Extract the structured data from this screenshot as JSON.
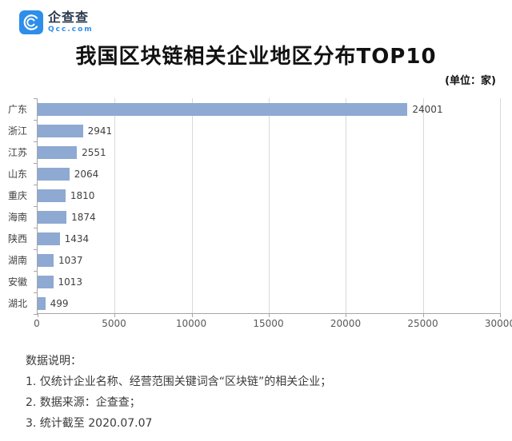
{
  "brand": {
    "name": "企查查",
    "domain": "Qcc.com",
    "brand_blue": "#2e8ee9"
  },
  "header": {
    "title": "我国区块链相关企业地区分布TOP10",
    "unit_label": "(单位：家)"
  },
  "chart_data": {
    "type": "bar",
    "orientation": "horizontal",
    "title": "我国区块链相关企业地区分布TOP10",
    "unit": "家",
    "categories": [
      "广东",
      "浙江",
      "江苏",
      "山东",
      "重庆",
      "海南",
      "陕西",
      "湖南",
      "安徽",
      "湖北"
    ],
    "values": [
      24001,
      2941,
      2551,
      2064,
      1810,
      1874,
      1434,
      1037,
      1013,
      499
    ],
    "x_ticks": [
      0,
      5000,
      10000,
      15000,
      20000,
      25000,
      30000
    ],
    "xlim": [
      0,
      30000
    ],
    "grid": true,
    "value_labels": true,
    "bar_color": "#8ea9d2",
    "grid_color": "#d9d9d9",
    "axis_color": "#a6a6a6"
  },
  "footer": {
    "heading": "数据说明：",
    "notes": [
      "1. 仅统计企业名称、经营范围关键词含“区块链”的相关企业；",
      "2. 数据来源：企查查；",
      "3. 统计截至 2020.07.07"
    ]
  }
}
